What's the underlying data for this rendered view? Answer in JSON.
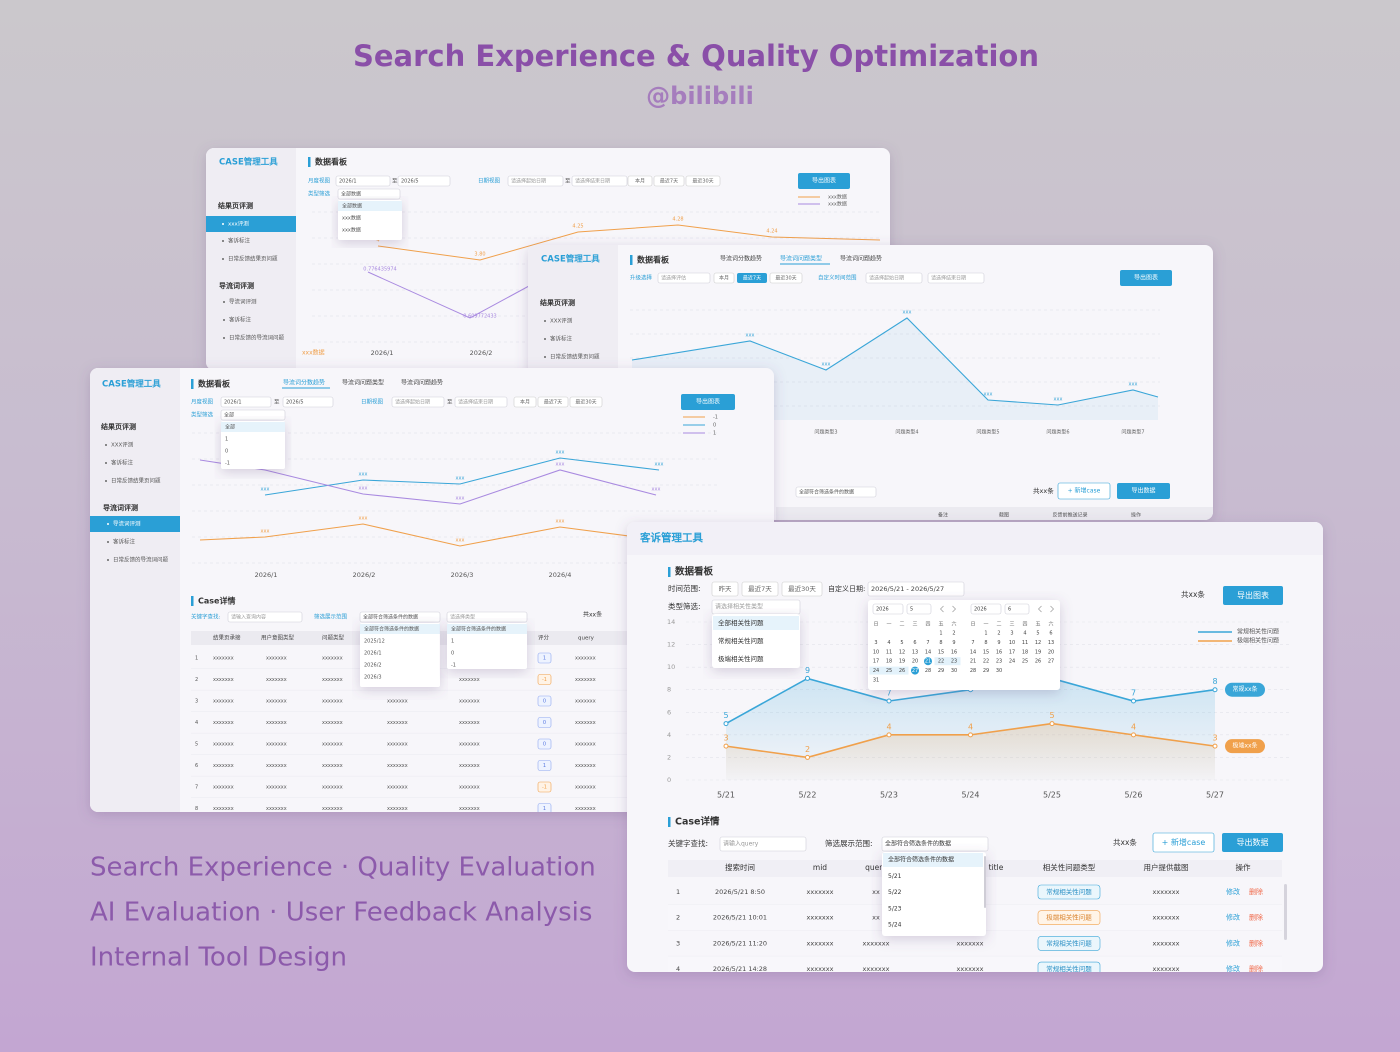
{
  "header": {
    "title": "Search Experience & Quality Optimization",
    "subtitle": "@bilibili"
  },
  "tags": [
    "Search Experience · Quality Evaluation",
    "AI Evaluation · User Feedback Analysis",
    "Internal Tool Design"
  ],
  "screen_a": {
    "tool": "CASE管理工具",
    "panel": "数据看板",
    "groups": [
      {
        "name": "结果页评测",
        "items": [
          "xxx评测",
          "客诉标注",
          "日常反馈结果页问题"
        ]
      },
      {
        "name": "导流词评测",
        "items": [
          "导流词评测",
          "客诉标注",
          "日常反馈的导流词问题"
        ]
      }
    ],
    "month_view": "月度视图",
    "from": "2026/1",
    "to_word": "至",
    "to": "2026/5",
    "type_filter": "类型筛选",
    "type_value": "全部数据",
    "type_options": [
      "全部数据",
      "xxx数据",
      "xxx数据"
    ],
    "date_view": "日期视图",
    "date_from": "请选择起始日期",
    "date_to": "请选择结束日期",
    "quick": [
      "本月",
      "最近7天",
      "最近30天"
    ],
    "export": "导出图表",
    "legend": [
      "xxx数据",
      "xxx数据"
    ],
    "point_labels": [
      "4",
      "3.80",
      "4.25",
      "4.28",
      "4.24",
      "0.776435974",
      "0.609772433"
    ],
    "x": [
      "2026/1",
      "2026/2"
    ],
    "axis_note": "xxx数据"
  },
  "screen_b": {
    "tool": "CASE管理工具",
    "panel": "数据看板",
    "groups": [
      {
        "name": "结果页评测",
        "items": [
          "XXX评测",
          "客诉标注",
          "日常反馈结果页问题"
        ]
      }
    ],
    "tabs": [
      "导流词分数趋势",
      "导流词问题类型",
      "导流词问题趋势"
    ],
    "select_label": "升级选择",
    "select_value": "请选择评估",
    "quick": [
      "本月",
      "最近7天",
      "最近30天"
    ],
    "custom": "自定义时间范围",
    "date_from": "请选择起始日期",
    "date_to": "请选择结束日期",
    "export": "导出图表",
    "point_label": "xxx",
    "x": [
      "问题类型3",
      "问题类型4",
      "问题类型5",
      "问题类型6",
      "问题类型7"
    ],
    "filter_value": "全部符合筛选条件的数据",
    "count": "共xx条",
    "add": "+ 新增case",
    "export_data": "导出数据",
    "columns": [
      "备注",
      "截图",
      "反馈前推送记录",
      "操作"
    ]
  },
  "screen_c": {
    "tool": "CASE管理工具",
    "panel": "数据看板",
    "groups": [
      {
        "name": "结果页评测",
        "items": [
          "XXX评测",
          "客诉标注",
          "日常反馈结果页问题"
        ]
      },
      {
        "name": "导流词评测",
        "items": [
          "导流词评测",
          "客诉标注",
          "日常反馈的导流词问题"
        ]
      }
    ],
    "tabs": [
      "导流词分数趋势",
      "导流词问题类型",
      "导流词问题趋势"
    ],
    "month_view": "月度视图",
    "from": "2026/1",
    "to_word": "至",
    "to": "2026/5",
    "type_filter": "类型筛选",
    "type_value": "全部",
    "type_options": [
      "全部",
      "1",
      "0",
      "-1"
    ],
    "date_view": "日期视图",
    "date_from": "请选择起始日期",
    "date_to": "请选择结束日期",
    "quick": [
      "本月",
      "最近7天",
      "最近30天"
    ],
    "export": "导出图表",
    "legend": [
      "-1",
      "0",
      "1"
    ],
    "point_label": "xxx",
    "x": [
      "2026/1",
      "2026/2",
      "2026/3",
      "2026/4"
    ],
    "section": "Case详情",
    "keyword": "关键字查找:",
    "keyword_ph": "请输入查询内容",
    "range": "筛选展示范围",
    "range_value": "全部符合筛选条件的数据",
    "range_options": [
      "全部符合筛选条件的数据",
      "2025/12",
      "2026/1",
      "2026/2",
      "2026/3"
    ],
    "type_ph": "请选择类型",
    "type_options2": [
      "全部符合筛选条件的数据",
      "1",
      "0",
      "-1"
    ],
    "count": "共xx条",
    "columns": [
      "结果页承接",
      "用户意图类型",
      "问题类型",
      "评分",
      "query"
    ],
    "rows": [
      [
        1,
        "xxxxxxx",
        "xxxxxxx",
        "xxxxxxx",
        "xxxxxxx",
        "xxxxxxx",
        "1",
        "xxxxxxx"
      ],
      [
        2,
        "xxxxxxx",
        "xxxxxxx",
        "xxxxxxx",
        "xxxxxxx",
        "xxxxxxx",
        "-1",
        "xxxxxxx"
      ],
      [
        3,
        "xxxxxxx",
        "xxxxxxx",
        "xxxxxxx",
        "xxxxxxx",
        "xxxxxxx",
        "0",
        "xxxxxxx"
      ],
      [
        4,
        "xxxxxxx",
        "xxxxxxx",
        "xxxxxxx",
        "xxxxxxx",
        "xxxxxxx",
        "0",
        "xxxxxxx"
      ],
      [
        5,
        "xxxxxxx",
        "xxxxxxx",
        "xxxxxxx",
        "xxxxxxx",
        "xxxxxxx",
        "0",
        "xxxxxxx"
      ],
      [
        6,
        "xxxxxxx",
        "xxxxxxx",
        "xxxxxxx",
        "xxxxxxx",
        "xxxxxxx",
        "1",
        "xxxxxxx"
      ],
      [
        7,
        "xxxxxxx",
        "xxxxxxx",
        "xxxxxxx",
        "xxxxxxx",
        "xxxxxxx",
        "-1",
        "xxxxxxx"
      ],
      [
        8,
        "xxxxxxx",
        "xxxxxxx",
        "xxxxxxx",
        "xxxxxxx",
        "xxxxxxx",
        "1",
        "xxxxxxx"
      ]
    ]
  },
  "screen_d": {
    "tool": "客诉管理工具",
    "panel": "数据看板",
    "time_label": "时间范围:",
    "quick": [
      "昨天",
      "最近7天",
      "最近30天"
    ],
    "custom_label": "自定义日期:",
    "custom_value": "2026/5/21 - 2026/5/27",
    "type_label": "类型筛选:",
    "type_ph": "请选择相关性类型",
    "type_options": [
      "全部相关性问题",
      "常规相关性问题",
      "极端相关性问题"
    ],
    "count": "共xx条",
    "export": "导出图表",
    "calendar": {
      "left_year": 2026,
      "left_month": 5,
      "right_year": 2026,
      "right_month": 6,
      "weekdays": [
        "日",
        "一",
        "二",
        "三",
        "四",
        "五",
        "六"
      ],
      "left_days": [
        1,
        2,
        3,
        4,
        5,
        6,
        7,
        8,
        9,
        10,
        11,
        12,
        13,
        14,
        15,
        16,
        17,
        18,
        19,
        20,
        21,
        22,
        23,
        24,
        25,
        26,
        27,
        28,
        29,
        30,
        31
      ],
      "right_days": [
        1,
        2,
        3,
        4,
        5,
        6,
        7,
        8,
        9,
        10,
        11,
        12,
        13,
        14,
        15,
        16,
        17,
        18,
        19,
        20,
        21,
        22,
        23,
        24,
        25,
        26,
        27,
        28,
        29,
        30
      ],
      "range": [
        21,
        27
      ]
    },
    "section": "Case详情",
    "keyword": "关键字查找:",
    "keyword_ph": "请输入query",
    "range": "筛选展示范围:",
    "range_value": "全部符合筛选条件的数据",
    "range_options": [
      "全部符合筛选条件的数据",
      "5/21",
      "5/22",
      "5/23",
      "5/24"
    ],
    "add": "+ 新增case",
    "export_data": "导出数据",
    "columns": [
      "搜索时间",
      "mid",
      "query",
      "title",
      "相关性问题类型",
      "用户提供截图",
      "操作"
    ],
    "rows": [
      [
        1,
        "2026/5/21 8:50",
        "xxxxxxx",
        "xx",
        "xxxxxxx",
        "常规相关性问题",
        "xxxxxxx"
      ],
      [
        2,
        "2026/5/21 10:01",
        "xxxxxxx",
        "xx",
        "xxxxxxx",
        "极端相关性问题",
        "xxxxxxx"
      ],
      [
        3,
        "2026/5/21 11:20",
        "xxxxxxx",
        "xxxxxxx",
        "xxxxxxx",
        "常规相关性问题",
        "xxxxxxx"
      ],
      [
        4,
        "2026/5/21 14:28",
        "xxxxxxx",
        "xxxxxxx",
        "xxxxxxx",
        "常规相关性问题",
        "xxxxxxx"
      ]
    ],
    "ops": [
      "修改",
      "删除"
    ]
  },
  "chart_data": {
    "type": "line",
    "categories": [
      "5/21",
      "5/22",
      "5/23",
      "5/24",
      "5/25",
      "5/26",
      "5/27"
    ],
    "series": [
      {
        "name": "常规相关性问题",
        "color": "#3aa6d8",
        "values": [
          5,
          9,
          7,
          8,
          9,
          7,
          8
        ],
        "tag": "常规xx条"
      },
      {
        "name": "极端相关性问题",
        "color": "#f0a04b",
        "values": [
          3,
          2,
          4,
          4,
          5,
          4,
          3
        ],
        "tag": "极端xx条"
      }
    ],
    "ylim": [
      0,
      14
    ],
    "yticks": [
      0,
      2,
      4,
      6,
      8,
      10,
      12,
      14
    ],
    "grid": true,
    "legend": "upper right"
  }
}
